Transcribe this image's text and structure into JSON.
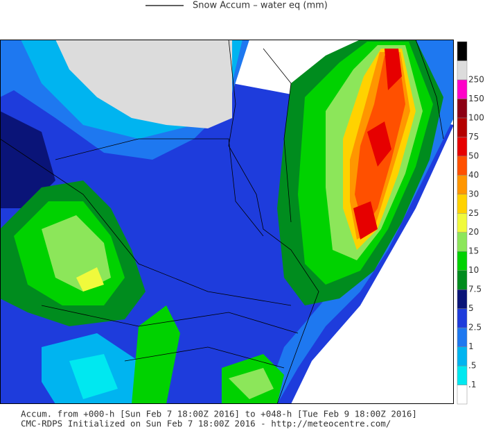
{
  "header": {
    "legend_label": "Snow Accum – water eq (mm)"
  },
  "colorbar": {
    "labels": [
      ".1",
      ".5",
      "1",
      "2.5",
      "5",
      "7.5",
      "10",
      "15",
      "20",
      "25",
      "30",
      "40",
      "50",
      "75",
      "100",
      "150",
      "250"
    ],
    "colors": [
      "#ffffff",
      "#00e8f0",
      "#00b4f0",
      "#1e78f0",
      "#1e3cdc",
      "#0a1478",
      "#008c1e",
      "#00d200",
      "#8ce65a",
      "#f0fa3c",
      "#ffd200",
      "#ff9600",
      "#ff5000",
      "#e60000",
      "#b40000",
      "#8c0014",
      "#ff00c8",
      "#dcdcdc",
      "#000000"
    ]
  },
  "footer": {
    "lines": [
      "Accum. from +000-h [Sun Feb 7 18:00Z 2016] to +048-h [Tue Feb 9 18:00Z 2016]",
      "CMC-RDPS Initialized on Sun Feb 7 18:00Z 2016 - http://meteocentre.com/"
    ]
  }
}
